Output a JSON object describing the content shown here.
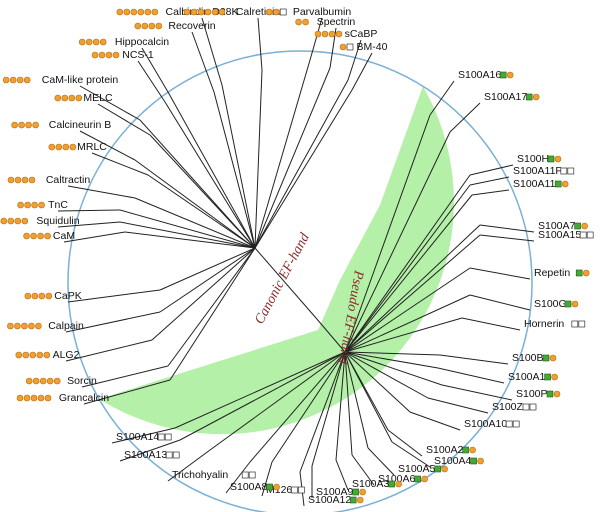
{
  "diagram": {
    "colors": {
      "pseudo_region": "#b4f0a8",
      "branch": "#222222",
      "circle_outline": "#7ab0d6",
      "canonical_motif": "#f0a030",
      "pseudo_motif": "#44aa33",
      "motif_stroke": "#b86a10",
      "region_label": "#8a2a2a"
    },
    "region_labels": {
      "canonical": "Canonic EF-hand",
      "pseudo": "Pseudo EF-hand"
    },
    "leaves": [
      {
        "name": "Calbindin D28K",
        "motifs": "cccccc",
        "group": "canonical"
      },
      {
        "name": "Recoverin",
        "motifs": "cccc",
        "group": "canonical"
      },
      {
        "name": "Calretinin",
        "motifs": "cccccc",
        "group": "canonical"
      },
      {
        "name": "Parvalbumin",
        "motifs": "cce",
        "group": "canonical"
      },
      {
        "name": "Spectrin",
        "motifs": "cc",
        "group": "canonical"
      },
      {
        "name": "sCaBP",
        "motifs": "cccc",
        "group": "canonical"
      },
      {
        "name": "BM-40",
        "motifs": "ce",
        "group": "canonical"
      },
      {
        "name": "Hippocalcin",
        "motifs": "cccc",
        "group": "canonical"
      },
      {
        "name": "NCS-1",
        "motifs": "cccc",
        "group": "canonical"
      },
      {
        "name": "CaM-like protein",
        "motifs": "cccc",
        "group": "canonical"
      },
      {
        "name": "MELC",
        "motifs": "cccc",
        "group": "canonical"
      },
      {
        "name": "Calcineurin B",
        "motifs": "cccc",
        "group": "canonical"
      },
      {
        "name": "MRLC",
        "motifs": "cccc",
        "group": "canonical"
      },
      {
        "name": "Caltractin",
        "motifs": "cccc",
        "group": "canonical"
      },
      {
        "name": "TnC",
        "motifs": "cccc",
        "group": "canonical"
      },
      {
        "name": "Squidulin",
        "motifs": "cccc",
        "group": "canonical"
      },
      {
        "name": "CaM",
        "motifs": "cccc",
        "group": "canonical"
      },
      {
        "name": "CaPK",
        "motifs": "cccc",
        "group": "canonical"
      },
      {
        "name": "Calpain",
        "motifs": "ccccc",
        "group": "canonical"
      },
      {
        "name": "ALG2",
        "motifs": "ccccc",
        "group": "canonical"
      },
      {
        "name": "Sorcin",
        "motifs": "ccccc",
        "group": "canonical"
      },
      {
        "name": "Grancalcin",
        "motifs": "ccccc",
        "group": "canonical"
      },
      {
        "name": "S100A16",
        "motifs": "pc",
        "group": "pseudo"
      },
      {
        "name": "S100A17",
        "motifs": "pc",
        "group": "pseudo"
      },
      {
        "name": "S100H",
        "motifs": "pc",
        "group": "pseudo"
      },
      {
        "name": "S100A11P",
        "motifs": "ee",
        "group": "pseudo"
      },
      {
        "name": "S100A11",
        "motifs": "pc",
        "group": "pseudo"
      },
      {
        "name": "S100A7",
        "motifs": "pc",
        "group": "pseudo"
      },
      {
        "name": "S100A15",
        "motifs": "ee",
        "group": "pseudo"
      },
      {
        "name": "Repetin",
        "motifs": "pc",
        "group": "pseudo"
      },
      {
        "name": "S100G",
        "motifs": "pc",
        "group": "pseudo"
      },
      {
        "name": "Hornerin",
        "motifs": "ee",
        "group": "pseudo"
      },
      {
        "name": "S100B",
        "motifs": "pc",
        "group": "pseudo"
      },
      {
        "name": "S100A1",
        "motifs": "pc",
        "group": "pseudo"
      },
      {
        "name": "S100P",
        "motifs": "pc",
        "group": "pseudo"
      },
      {
        "name": "S100Z",
        "motifs": "ee",
        "group": "pseudo"
      },
      {
        "name": "S100A10",
        "motifs": "ee",
        "group": "pseudo"
      },
      {
        "name": "S100A2",
        "motifs": "pc",
        "group": "pseudo"
      },
      {
        "name": "S100A4",
        "motifs": "pc",
        "group": "pseudo"
      },
      {
        "name": "S100A5",
        "motifs": "pc",
        "group": "pseudo"
      },
      {
        "name": "S100A6",
        "motifs": "pc",
        "group": "pseudo"
      },
      {
        "name": "S100A3",
        "motifs": "pc",
        "group": "pseudo"
      },
      {
        "name": "S100A9",
        "motifs": "pc",
        "group": "pseudo"
      },
      {
        "name": "S100A12",
        "motifs": "pc",
        "group": "pseudo"
      },
      {
        "name": "M126",
        "motifs": "ee",
        "group": "pseudo"
      },
      {
        "name": "S100A8",
        "motifs": "pc",
        "group": "pseudo"
      },
      {
        "name": "Trichohyalin",
        "motifs": "ee",
        "group": "pseudo"
      },
      {
        "name": "S100A13",
        "motifs": "ee",
        "group": "pseudo"
      },
      {
        "name": "S100A14",
        "motifs": "ee",
        "group": "pseudo"
      }
    ]
  }
}
